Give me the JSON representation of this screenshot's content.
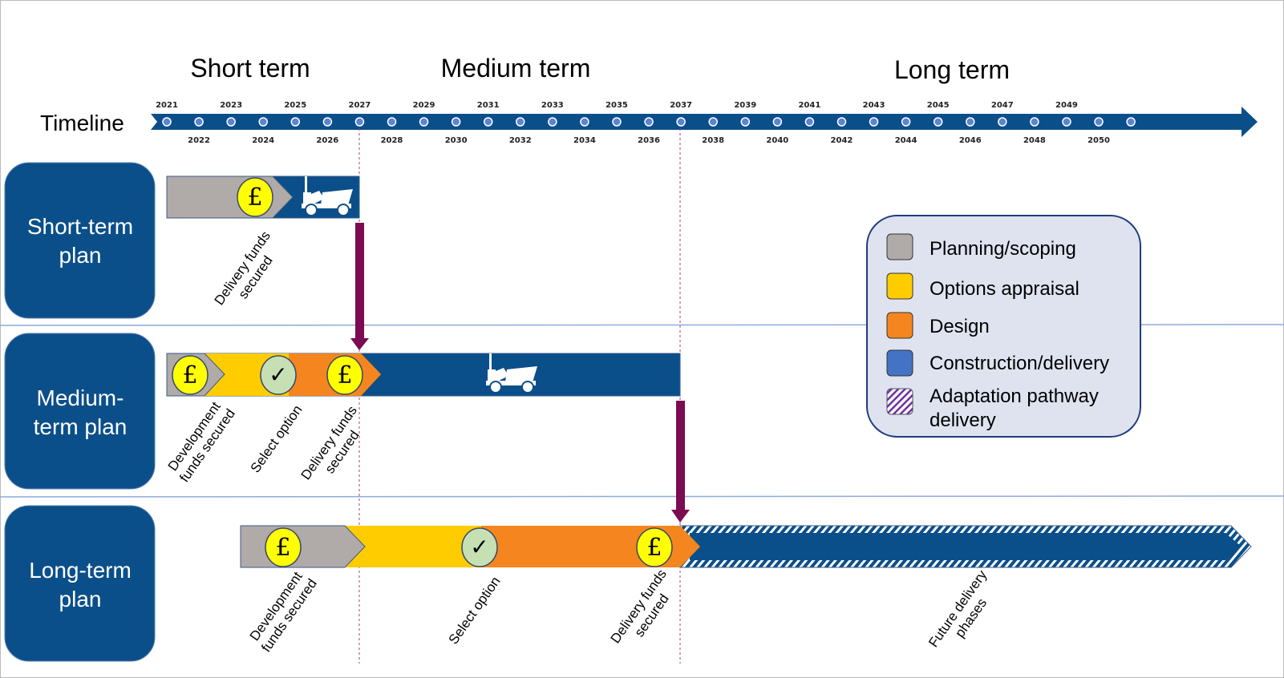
{
  "headers": {
    "short": "Short term",
    "medium": "Medium term",
    "long": "Long term"
  },
  "timeline": {
    "label": "Timeline",
    "years": [
      2021,
      2022,
      2023,
      2024,
      2025,
      2026,
      2027,
      2028,
      2029,
      2030,
      2031,
      2032,
      2033,
      2034,
      2035,
      2036,
      2037,
      2038,
      2039,
      2040,
      2041,
      2042,
      2043,
      2044,
      2045,
      2046,
      2047,
      2048,
      2049,
      2050
    ]
  },
  "rows": [
    {
      "label_1": "Short-term",
      "label_2": "plan",
      "milestones": [
        {
          "l1": "Delivery funds",
          "l2": "secured"
        }
      ]
    },
    {
      "label_1": "Medium-",
      "label_2": "term plan",
      "milestones": [
        {
          "l1": "Development",
          "l2": "funds secured"
        },
        {
          "l1": "Select option",
          "l2": ""
        },
        {
          "l1": "Delivery funds",
          "l2": "secured"
        }
      ]
    },
    {
      "label_1": "Long-term",
      "label_2": "plan",
      "milestones": [
        {
          "l1": "Development",
          "l2": "funds secured"
        },
        {
          "l1": "Select option",
          "l2": ""
        },
        {
          "l1": "Delivery funds",
          "l2": "secured"
        },
        {
          "l1": "Future delivery",
          "l2": "phases"
        }
      ]
    }
  ],
  "legend": [
    {
      "label": "Planning/scoping",
      "color": "#b0aaa8"
    },
    {
      "label": "Options appraisal",
      "color": "#ffcc00"
    },
    {
      "label": "Design",
      "color": "#f5861f"
    },
    {
      "label": "Construction/delivery",
      "color": "#4472c4"
    },
    {
      "label_1": "Adaptation pathway",
      "label_2": "delivery",
      "color": "#7030a0"
    }
  ],
  "colors": {
    "navy": "#0b4f8a",
    "purple": "#7b0b52",
    "grey": "#b0aaa8",
    "yellow": "#ffcc00",
    "orange": "#f5861f"
  },
  "icons": {
    "funds": "pound-icon",
    "select": "check-icon",
    "delivery": "dumper-truck-icon"
  },
  "symbols": {
    "pound": "£",
    "check": "✓"
  }
}
